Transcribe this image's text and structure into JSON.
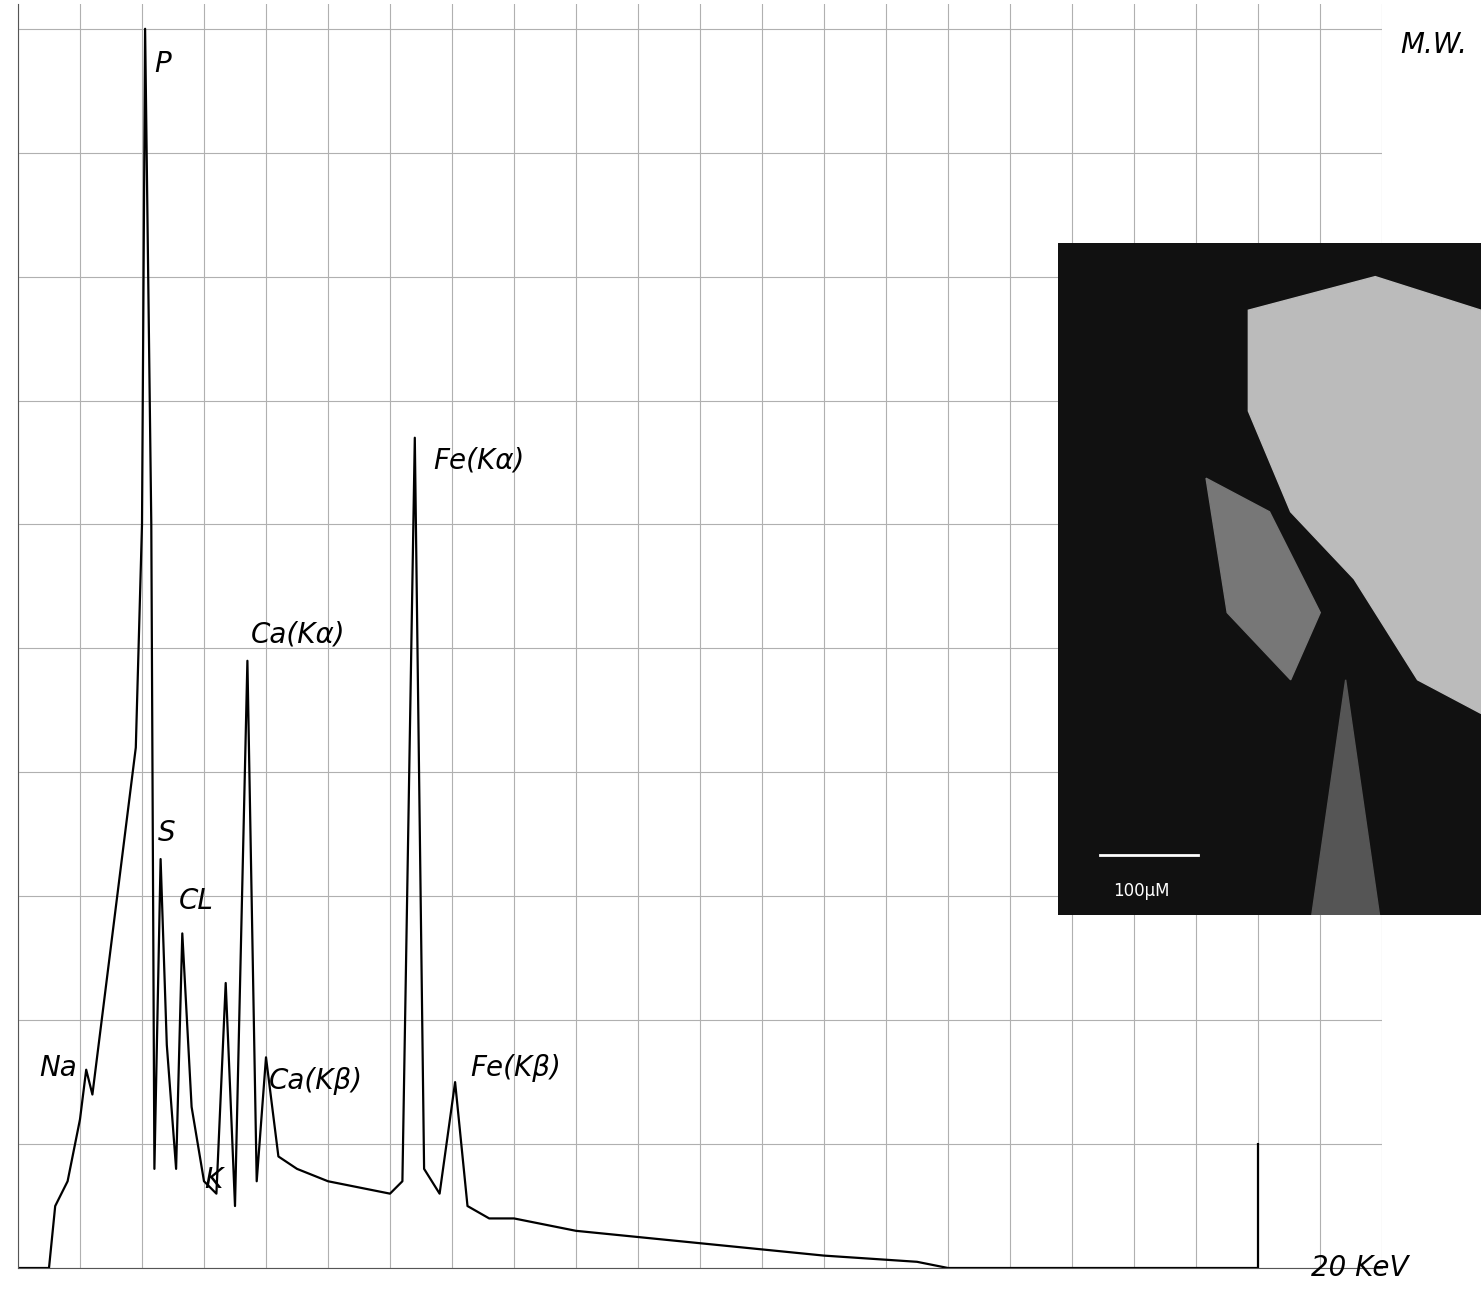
{
  "chart_data": {
    "type": "line",
    "x": [
      0.0,
      0.5,
      0.6,
      0.8,
      1.0,
      1.1,
      1.2,
      1.4,
      1.6,
      1.8,
      1.9,
      2.0,
      2.05,
      2.15,
      2.2,
      2.3,
      2.4,
      2.55,
      2.65,
      2.8,
      3.0,
      3.2,
      3.35,
      3.5,
      3.7,
      3.85,
      4.0,
      4.2,
      4.5,
      5.0,
      5.5,
      6.0,
      6.2,
      6.4,
      6.55,
      6.8,
      7.05,
      7.25,
      7.6,
      8.0,
      9.0,
      10.0,
      11.0,
      12.0,
      13.0,
      14.5,
      15.0,
      20.0,
      20.0
    ],
    "values": [
      0,
      0,
      5,
      7,
      12,
      16,
      14,
      22,
      30,
      38,
      42,
      60,
      100,
      60,
      8,
      33,
      18,
      8,
      27,
      13,
      7,
      6,
      23,
      5,
      49,
      7,
      17,
      9,
      8,
      7,
      6.5,
      6,
      7,
      67,
      8,
      6,
      15,
      5,
      4,
      4,
      3,
      2.5,
      2,
      1.5,
      1,
      0.5,
      0,
      0,
      10
    ],
    "color": "#000000",
    "xlim": [
      0,
      22
    ],
    "ylim": [
      0,
      102
    ],
    "xticks": [
      0,
      1,
      2,
      3,
      4,
      5,
      6,
      7,
      8,
      9,
      10,
      11,
      12,
      13,
      14,
      15,
      16,
      17,
      18,
      19,
      20,
      21,
      22
    ],
    "yticks": [
      0,
      10,
      20,
      30,
      40,
      50,
      60,
      70,
      80,
      90,
      100
    ],
    "grid": true,
    "tick_labels": false,
    "annotations": [
      {
        "text": "P",
        "x": 2.2,
        "y": 96
      },
      {
        "text": "S",
        "x": 2.26,
        "y": 34
      },
      {
        "text": "CL",
        "x": 2.6,
        "y": 28.5
      },
      {
        "text": "Na",
        "x": 0.35,
        "y": 15
      },
      {
        "text": "K",
        "x": 3.0,
        "y": 6
      },
      {
        "text": "Ca(Kα)",
        "x": 3.75,
        "y": 50
      },
      {
        "text": "Ca(Kβ)",
        "x": 4.05,
        "y": 14
      },
      {
        "text": "Fe(Kα)",
        "x": 6.7,
        "y": 64
      },
      {
        "text": "Fe(Kβ)",
        "x": 7.3,
        "y": 15
      },
      {
        "text": "20 KeV",
        "x": 20.85,
        "y": 0
      }
    ],
    "corner_text": "M.W.",
    "inset": {
      "scale_bar": "100µM"
    }
  }
}
